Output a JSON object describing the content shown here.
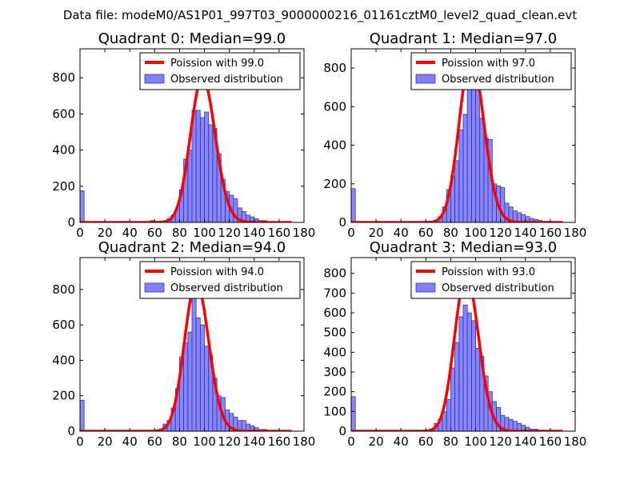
{
  "suptitle": "Data file: modeM0/AS1P01_997T03_9000000216_01161cztM0_level2_quad_clean.evt",
  "colors": {
    "poisson": "#ff0000",
    "bar_fill": "#8080ff",
    "bar_edge": "#3333aa",
    "axes": "#000000"
  },
  "chart_data": [
    {
      "type": "bar",
      "title": "Quadrant 0: Median=99.0",
      "xlim": [
        0,
        180
      ],
      "ylim": [
        0,
        960
      ],
      "xticks": [
        "0",
        "20",
        "40",
        "60",
        "80",
        "100",
        "120",
        "140",
        "160",
        "180"
      ],
      "yticks": [
        0,
        200,
        400,
        600,
        800
      ],
      "legend": {
        "poisson": "Poission with 99.0",
        "observed": "Observed distribution",
        "loc": "upper right"
      },
      "poisson_mean": 99.0,
      "poisson_peak": 800,
      "bin_width": 3.33,
      "bins": [
        {
          "x": 0,
          "y": 175
        },
        {
          "x": 3.33,
          "y": 5
        },
        {
          "x": 56.7,
          "y": 10
        },
        {
          "x": 63.3,
          "y": 5
        },
        {
          "x": 66.7,
          "y": 10
        },
        {
          "x": 70,
          "y": 20
        },
        {
          "x": 73.3,
          "y": 40
        },
        {
          "x": 76.7,
          "y": 80
        },
        {
          "x": 80,
          "y": 180
        },
        {
          "x": 83.3,
          "y": 350
        },
        {
          "x": 86.7,
          "y": 400
        },
        {
          "x": 90,
          "y": 620
        },
        {
          "x": 93.3,
          "y": 620
        },
        {
          "x": 96.7,
          "y": 580
        },
        {
          "x": 100,
          "y": 610
        },
        {
          "x": 103.3,
          "y": 540
        },
        {
          "x": 106.7,
          "y": 520
        },
        {
          "x": 110,
          "y": 380
        },
        {
          "x": 113.3,
          "y": 240
        },
        {
          "x": 116.7,
          "y": 170
        },
        {
          "x": 120,
          "y": 150
        },
        {
          "x": 123.3,
          "y": 130
        },
        {
          "x": 126.7,
          "y": 80
        },
        {
          "x": 130,
          "y": 60
        },
        {
          "x": 133.3,
          "y": 40
        },
        {
          "x": 136.7,
          "y": 30
        },
        {
          "x": 140,
          "y": 20
        },
        {
          "x": 143.3,
          "y": 10
        },
        {
          "x": 146.7,
          "y": 10
        },
        {
          "x": 150,
          "y": 5
        },
        {
          "x": 153.3,
          "y": 5
        }
      ]
    },
    {
      "type": "bar",
      "title": "Quadrant 1: Median=97.0",
      "xlim": [
        0,
        180
      ],
      "ylim": [
        0,
        900
      ],
      "xticks": [
        "0",
        "20",
        "40",
        "60",
        "80",
        "100",
        "120",
        "140",
        "160",
        "180"
      ],
      "yticks": [
        0,
        200,
        400,
        600,
        800
      ],
      "legend": {
        "poisson": "Poission with 97.0",
        "observed": "Observed distribution",
        "loc": "upper right"
      },
      "poisson_mean": 97.0,
      "poisson_peak": 860,
      "bin_width": 3.33,
      "bins": [
        {
          "x": 0,
          "y": 175
        },
        {
          "x": 3.33,
          "y": 5
        },
        {
          "x": 63.3,
          "y": 5
        },
        {
          "x": 66.7,
          "y": 10
        },
        {
          "x": 70,
          "y": 30
        },
        {
          "x": 73.3,
          "y": 80
        },
        {
          "x": 76.7,
          "y": 170
        },
        {
          "x": 80,
          "y": 240
        },
        {
          "x": 83.3,
          "y": 320
        },
        {
          "x": 86.7,
          "y": 480
        },
        {
          "x": 90,
          "y": 560
        },
        {
          "x": 93.3,
          "y": 700
        },
        {
          "x": 96.7,
          "y": 720
        },
        {
          "x": 100,
          "y": 720
        },
        {
          "x": 103.3,
          "y": 540
        },
        {
          "x": 106.7,
          "y": 440
        },
        {
          "x": 110,
          "y": 430
        },
        {
          "x": 113.3,
          "y": 200
        },
        {
          "x": 116.7,
          "y": 190
        },
        {
          "x": 120,
          "y": 180
        },
        {
          "x": 123.3,
          "y": 100
        },
        {
          "x": 126.7,
          "y": 80
        },
        {
          "x": 130,
          "y": 60
        },
        {
          "x": 133.3,
          "y": 50
        },
        {
          "x": 136.7,
          "y": 40
        },
        {
          "x": 140,
          "y": 30
        },
        {
          "x": 143.3,
          "y": 20
        },
        {
          "x": 146.7,
          "y": 15
        },
        {
          "x": 150,
          "y": 10
        },
        {
          "x": 153.3,
          "y": 5
        }
      ]
    },
    {
      "type": "bar",
      "title": "Quadrant 2: Median=94.0",
      "xlim": [
        0,
        180
      ],
      "ylim": [
        0,
        980
      ],
      "xticks": [
        "0",
        "20",
        "40",
        "60",
        "80",
        "100",
        "120",
        "140",
        "160",
        "180"
      ],
      "yticks": [
        0,
        200,
        400,
        600,
        800
      ],
      "legend": {
        "poisson": "Poission with 94.0",
        "observed": "Observed distribution",
        "loc": "upper right"
      },
      "poisson_mean": 94.0,
      "poisson_peak": 840,
      "bin_width": 3.33,
      "bins": [
        {
          "x": 0,
          "y": 175
        },
        {
          "x": 3.33,
          "y": 5
        },
        {
          "x": 50,
          "y": 5
        },
        {
          "x": 56.7,
          "y": 5
        },
        {
          "x": 63.3,
          "y": 10
        },
        {
          "x": 66.7,
          "y": 40
        },
        {
          "x": 70,
          "y": 60
        },
        {
          "x": 73.3,
          "y": 130
        },
        {
          "x": 76.7,
          "y": 240
        },
        {
          "x": 80,
          "y": 420
        },
        {
          "x": 83.3,
          "y": 500
        },
        {
          "x": 86.7,
          "y": 560
        },
        {
          "x": 90,
          "y": 900
        },
        {
          "x": 93.3,
          "y": 640
        },
        {
          "x": 96.7,
          "y": 600
        },
        {
          "x": 100,
          "y": 480
        },
        {
          "x": 103.3,
          "y": 430
        },
        {
          "x": 106.7,
          "y": 300
        },
        {
          "x": 110,
          "y": 200
        },
        {
          "x": 113.3,
          "y": 190
        },
        {
          "x": 116.7,
          "y": 120
        },
        {
          "x": 120,
          "y": 100
        },
        {
          "x": 123.3,
          "y": 80
        },
        {
          "x": 126.7,
          "y": 60
        },
        {
          "x": 130,
          "y": 60
        },
        {
          "x": 133.3,
          "y": 40
        },
        {
          "x": 136.7,
          "y": 30
        },
        {
          "x": 140,
          "y": 20
        },
        {
          "x": 143.3,
          "y": 10
        },
        {
          "x": 146.7,
          "y": 10
        },
        {
          "x": 150,
          "y": 5
        },
        {
          "x": 153.3,
          "y": 5
        }
      ]
    },
    {
      "type": "bar",
      "title": "Quadrant 3: Median=93.0",
      "xlim": [
        0,
        180
      ],
      "ylim": [
        0,
        880
      ],
      "xticks": [
        "0",
        "20",
        "40",
        "60",
        "80",
        "100",
        "120",
        "140",
        "160",
        "180"
      ],
      "yticks": [
        0,
        100,
        200,
        300,
        400,
        500,
        600,
        700,
        800
      ],
      "legend": {
        "poisson": "Poission with 93.0",
        "observed": "Observed distribution",
        "loc": "upper right"
      },
      "poisson_mean": 93.0,
      "poisson_peak": 790,
      "bin_width": 3.33,
      "bins": [
        {
          "x": 0,
          "y": 175
        },
        {
          "x": 3.33,
          "y": 5
        },
        {
          "x": 50,
          "y": 5
        },
        {
          "x": 56.7,
          "y": 5
        },
        {
          "x": 60,
          "y": 5
        },
        {
          "x": 63.3,
          "y": 10
        },
        {
          "x": 66.7,
          "y": 40
        },
        {
          "x": 70,
          "y": 60
        },
        {
          "x": 73.3,
          "y": 100
        },
        {
          "x": 76.7,
          "y": 160
        },
        {
          "x": 80,
          "y": 320
        },
        {
          "x": 83.3,
          "y": 450
        },
        {
          "x": 86.7,
          "y": 580
        },
        {
          "x": 90,
          "y": 640
        },
        {
          "x": 93.3,
          "y": 600
        },
        {
          "x": 96.7,
          "y": 560
        },
        {
          "x": 100,
          "y": 420
        },
        {
          "x": 103.3,
          "y": 380
        },
        {
          "x": 106.7,
          "y": 280
        },
        {
          "x": 110,
          "y": 200
        },
        {
          "x": 113.3,
          "y": 150
        },
        {
          "x": 116.7,
          "y": 120
        },
        {
          "x": 120,
          "y": 80
        },
        {
          "x": 123.3,
          "y": 70
        },
        {
          "x": 126.7,
          "y": 60
        },
        {
          "x": 130,
          "y": 50
        },
        {
          "x": 133.3,
          "y": 40
        },
        {
          "x": 136.7,
          "y": 30
        },
        {
          "x": 140,
          "y": 20
        },
        {
          "x": 143.3,
          "y": 10
        },
        {
          "x": 146.7,
          "y": 10
        },
        {
          "x": 150,
          "y": 5
        }
      ]
    }
  ]
}
